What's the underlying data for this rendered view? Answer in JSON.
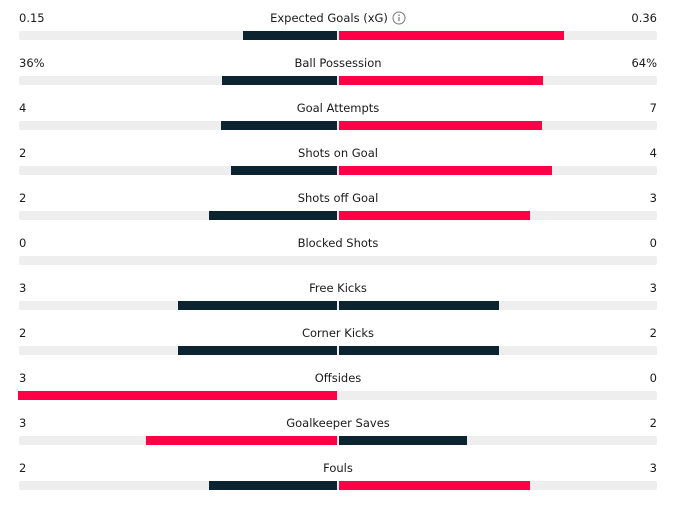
{
  "stats": [
    {
      "label": "Expected Goals (xG)",
      "home": {
        "value": 0.15,
        "label": "0.15"
      },
      "away": {
        "value": 0.36,
        "label": "0.36"
      }
    },
    {
      "label": "Ball Possession",
      "home": {
        "value": 36,
        "label": "36%"
      },
      "away": {
        "value": 64,
        "label": "64%"
      }
    },
    {
      "label": "Goal Attempts",
      "home": 4,
      "away": 7
    },
    {
      "label": "Shots on Goal",
      "home": 2,
      "away": 4
    },
    {
      "label": "Shots off Goal",
      "home": 2,
      "away": 3
    },
    {
      "label": "Blocked Shots",
      "home": 0,
      "away": 0
    },
    {
      "label": "Free Kicks",
      "home": 3,
      "away": 3
    },
    {
      "label": "Corner Kicks",
      "home": 2,
      "away": 2
    },
    {
      "label": "Offsides",
      "home": 3,
      "away": 0
    },
    {
      "label": "Goalkeeper Saves",
      "home": 3,
      "away": 2
    },
    {
      "label": "Fouls",
      "home": 2,
      "away": 3
    }
  ],
  "colors": {
    "leading": "#ff0046",
    "trailing": "#0c2330",
    "track": "#eeeeee"
  }
}
